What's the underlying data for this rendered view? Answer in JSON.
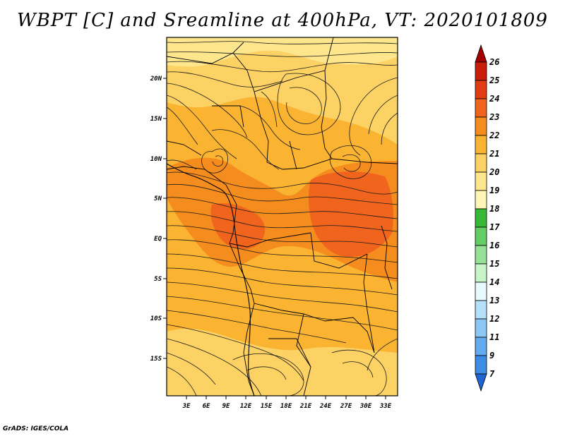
{
  "title": "WBPT [C] and Sreamline at 400hPa, VT: 2020101809",
  "credit": "GrADS: IGES/COLA",
  "map": {
    "lon_labels": [
      "3E",
      "6E",
      "9E",
      "12E",
      "15E",
      "18E",
      "21E",
      "24E",
      "27E",
      "30E",
      "33E"
    ],
    "lat_labels": [
      "20N",
      "15N",
      "10N",
      "5N",
      "EQ",
      "5S",
      "10S",
      "15S"
    ]
  },
  "colorbar": {
    "labels": [
      "26",
      "25",
      "24",
      "23",
      "22",
      "21",
      "20",
      "19",
      "18",
      "17",
      "16",
      "15",
      "14",
      "13",
      "12",
      "11",
      "9",
      "7"
    ],
    "colors": [
      "#a50000",
      "#c81e0a",
      "#e13c14",
      "#f0641e",
      "#f58c1e",
      "#fab432",
      "#fcd264",
      "#fde68c",
      "#fff5b4",
      "#37b937",
      "#64cd64",
      "#96e196",
      "#c8f5c8",
      "#e6faff",
      "#b4e1fa",
      "#8cc8f5",
      "#64aaf0",
      "#3c8ce6",
      "#1e64d2"
    ]
  }
}
